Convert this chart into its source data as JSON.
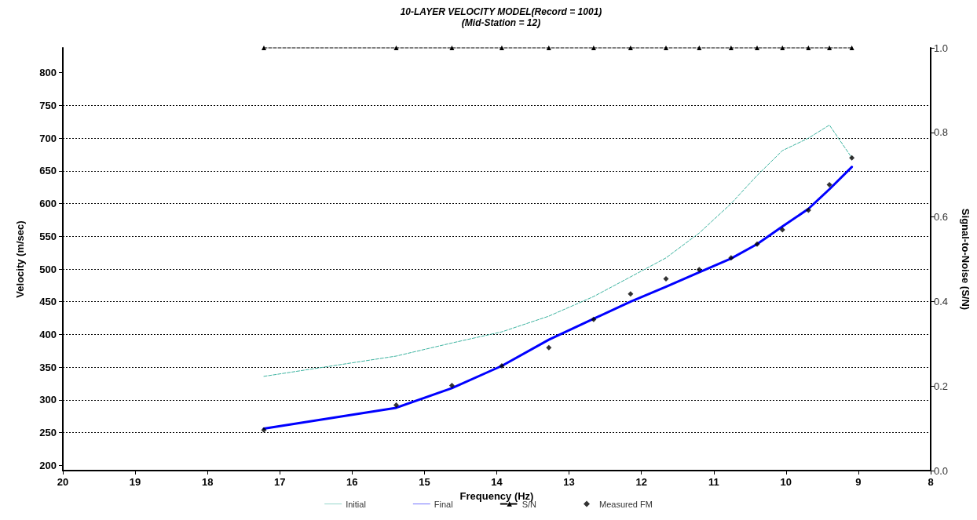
{
  "chart_data": {
    "type": "line",
    "title": "10-LAYER VELOCITY MODEL(Record = 1001)",
    "subtitle": "(Mid-Station = 12)",
    "xlabel": "Frequency (Hz)",
    "ylabel": "Velocity (m/sec)",
    "y2label": "Signal-to-Noise (S/N)",
    "xlim": [
      20,
      8
    ],
    "xticks": [
      20,
      19,
      18,
      17,
      16,
      15,
      14,
      13,
      12,
      11,
      10,
      9,
      8
    ],
    "ylim": [
      192,
      838
    ],
    "yticks": [
      200,
      250,
      300,
      350,
      400,
      450,
      500,
      550,
      600,
      650,
      700,
      750,
      800
    ],
    "y2lim": [
      0,
      1
    ],
    "y2ticks": [
      {
        "value": 0,
        "label": "0.0"
      },
      0.2,
      0.4,
      0.6,
      0.8,
      {
        "value": 1,
        "label": "1.0"
      }
    ],
    "grid": "y",
    "legend": "bottom",
    "series": [
      {
        "name": "Initial",
        "color": "#3cb3a0",
        "line_style": "dashed",
        "marker": "none",
        "x": [
          17.22,
          15.39,
          14.62,
          13.93,
          13.28,
          12.66,
          12.15,
          11.66,
          11.2,
          10.76,
          10.4,
          10.05,
          9.69,
          9.4,
          9.09
        ],
        "values": [
          336,
          367,
          387,
          404,
          428,
          458,
          488,
          517,
          555,
          600,
          643,
          681,
          700,
          720,
          670
        ]
      },
      {
        "name": "Final",
        "color": "#0000ff",
        "line_style": "solid",
        "marker": "none",
        "x": [
          17.22,
          15.39,
          14.62,
          13.93,
          13.28,
          12.66,
          12.15,
          11.66,
          11.2,
          10.76,
          10.4,
          10.05,
          9.69,
          9.4,
          9.09
        ],
        "values": [
          256,
          288,
          318,
          352,
          392,
          424,
          450,
          473,
          495,
          516,
          538,
          565,
          592,
          622,
          656
        ]
      },
      {
        "name": "S/N",
        "axis": "y2",
        "color": "#000000",
        "line_style": "dashed",
        "marker": "triangle",
        "x": [
          17.22,
          15.39,
          14.62,
          13.93,
          13.28,
          12.66,
          12.15,
          11.66,
          11.2,
          10.76,
          10.4,
          10.05,
          9.69,
          9.4,
          9.09
        ],
        "values": [
          1,
          1,
          1,
          1,
          1,
          1,
          1,
          1,
          1,
          1,
          1,
          1,
          1,
          1,
          1
        ]
      },
      {
        "name": "Measured FM",
        "type": "scatter",
        "color": "#000000",
        "marker": "diamond",
        "x": [
          17.22,
          15.39,
          14.62,
          13.93,
          13.28,
          12.66,
          12.15,
          11.66,
          11.2,
          10.76,
          10.4,
          10.05,
          9.69,
          9.4,
          9.09
        ],
        "values": [
          254,
          292,
          322,
          352,
          380,
          423,
          462,
          485,
          499,
          517,
          538,
          560,
          590,
          629,
          670
        ]
      }
    ]
  }
}
